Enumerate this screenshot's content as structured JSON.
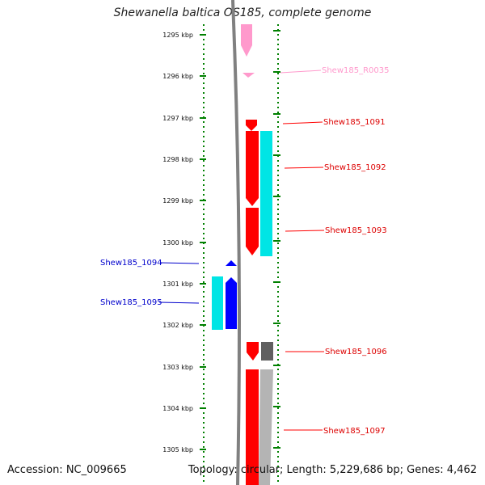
{
  "title": "Shewanella baltica OS185, complete genome",
  "footer": {
    "accession": "Accession: NC_009665",
    "summary": "Topology: circular; Length: 5,229,686 bp; Genes: 4,462"
  },
  "axis": {
    "unit": "kbp",
    "ticks": [
      "1295 kbp",
      "1296 kbp",
      "1297 kbp",
      "1298 kbp",
      "1299 kbp",
      "1300 kbp",
      "1301 kbp",
      "1302 kbp",
      "1303 kbp",
      "1304 kbp",
      "1305 kbp"
    ]
  },
  "colors": {
    "rna": "#ff99cc",
    "gene_forward": "#ff0000",
    "gene_reverse": "#0000ff",
    "cds_light": "#00e5e5",
    "cds_dark": "#606060",
    "cds_gray": "#b4b4b4",
    "ruler_dots": "#008000",
    "backbone": "#808080"
  },
  "labels": {
    "r0035": "Shew185_R0035",
    "g1091": "Shew185_1091",
    "g1092": "Shew185_1092",
    "g1093": "Shew185_1093",
    "g1094": "Shew185_1094",
    "g1095": "Shew185_1095",
    "g1096": "Shew185_1096",
    "g1097": "Shew185_1097"
  }
}
